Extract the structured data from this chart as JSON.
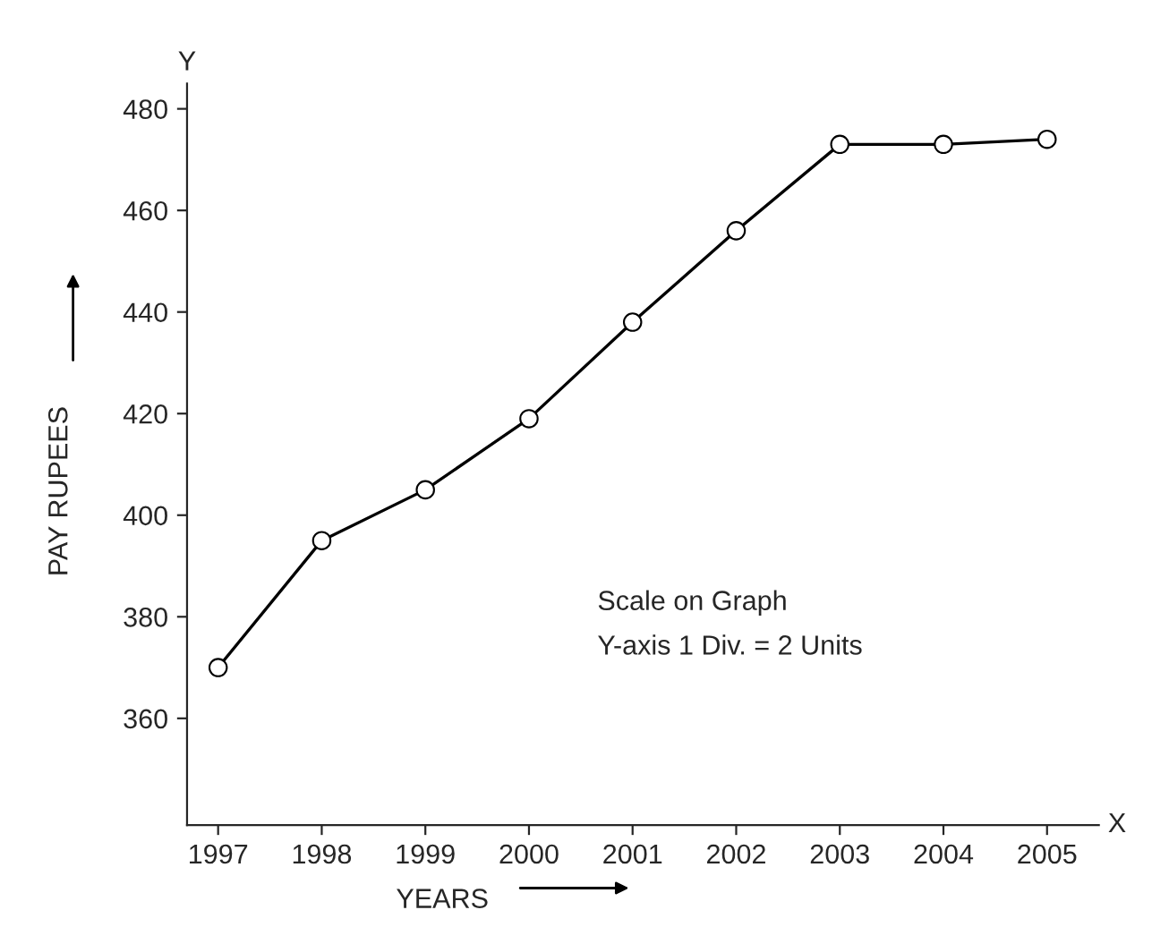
{
  "chart_data": {
    "type": "line",
    "xlabel": "YEARS",
    "ylabel": "PAY RUPEES",
    "categories": [
      "1997",
      "1998",
      "1999",
      "2000",
      "2001",
      "2002",
      "2003",
      "2004",
      "2005"
    ],
    "series": [
      {
        "color": "#000000",
        "values": [
          370,
          395,
          405,
          419,
          438,
          456,
          473,
          473,
          474
        ]
      }
    ],
    "ylim": [
      339,
      485
    ],
    "yticks": [
      360,
      380,
      400,
      420,
      440,
      460,
      480
    ],
    "annotations": [
      "Scale on Graph",
      "Y-axis 1 Div. = 2 Units",
      "X",
      "Y"
    ],
    "grid": false,
    "legend": false,
    "marker": "circle",
    "line_style": "solid"
  }
}
